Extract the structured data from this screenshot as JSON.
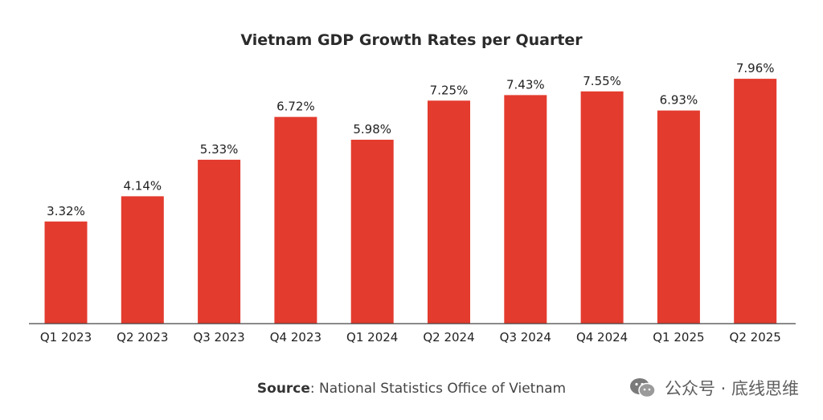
{
  "chart_data": {
    "type": "bar",
    "title": "Vietnam GDP Growth Rates per Quarter",
    "categories": [
      "Q1 2023",
      "Q2 2023",
      "Q3 2023",
      "Q4 2023",
      "Q1 2024",
      "Q2 2024",
      "Q3 2024",
      "Q4 2024",
      "Q1 2025",
      "Q2 2025"
    ],
    "values": [
      3.32,
      4.14,
      5.33,
      6.72,
      5.98,
      7.25,
      7.43,
      7.55,
      6.93,
      7.96
    ],
    "value_labels": [
      "3.32%",
      "4.14%",
      "5.33%",
      "6.72%",
      "5.98%",
      "7.25%",
      "7.43%",
      "7.55%",
      "6.93%",
      "7.96%"
    ],
    "xlabel": "",
    "ylabel": "",
    "ylim": [
      0,
      10
    ],
    "grid": false,
    "bar_color": "#e33b2e"
  },
  "source": {
    "label": "Source",
    "text": ": National Statistics Office of Vietnam"
  },
  "watermark": {
    "icon": "wechat-icon",
    "text": "公众号 · 底线思维"
  }
}
